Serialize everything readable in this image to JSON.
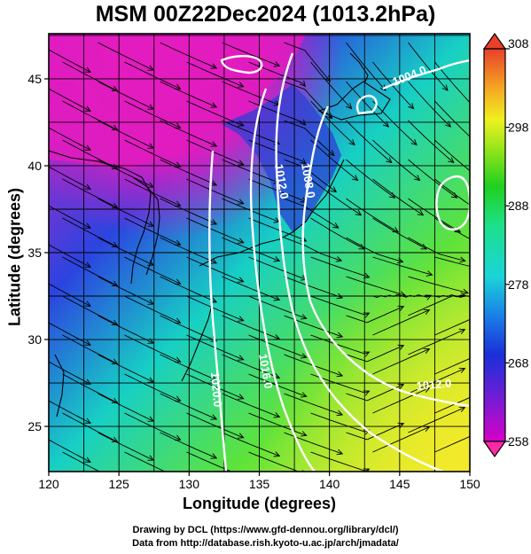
{
  "title": "MSM 00Z22Dec2024 (1013.2hPa)",
  "xaxis": {
    "label": "Longitude (degrees)",
    "ticks": [
      "120",
      "125",
      "130",
      "135",
      "140",
      "145",
      "150"
    ],
    "range": [
      120,
      150
    ]
  },
  "yaxis": {
    "label": "Latitude  (degrees)",
    "ticks": [
      "25",
      "30",
      "35",
      "40",
      "45"
    ],
    "range": [
      22.4,
      47.6
    ]
  },
  "colorbar": {
    "ticks": [
      "308",
      "298",
      "288",
      "278",
      "268",
      "258"
    ],
    "range": [
      258,
      308
    ]
  },
  "contours": [
    {
      "label": "1004.0"
    },
    {
      "label": "1008.0"
    },
    {
      "label": "1012.0"
    },
    {
      "label": "1016.0"
    },
    {
      "label": "1020.0"
    },
    {
      "label": "1012.0"
    }
  ],
  "credits": {
    "line1": "Drawing by DCL (https://www.gfd-dennou.org/library/dcl/)",
    "line2": "Data from http://database.rish.kyoto-u.ac.jp/arch/jmadata/"
  }
}
